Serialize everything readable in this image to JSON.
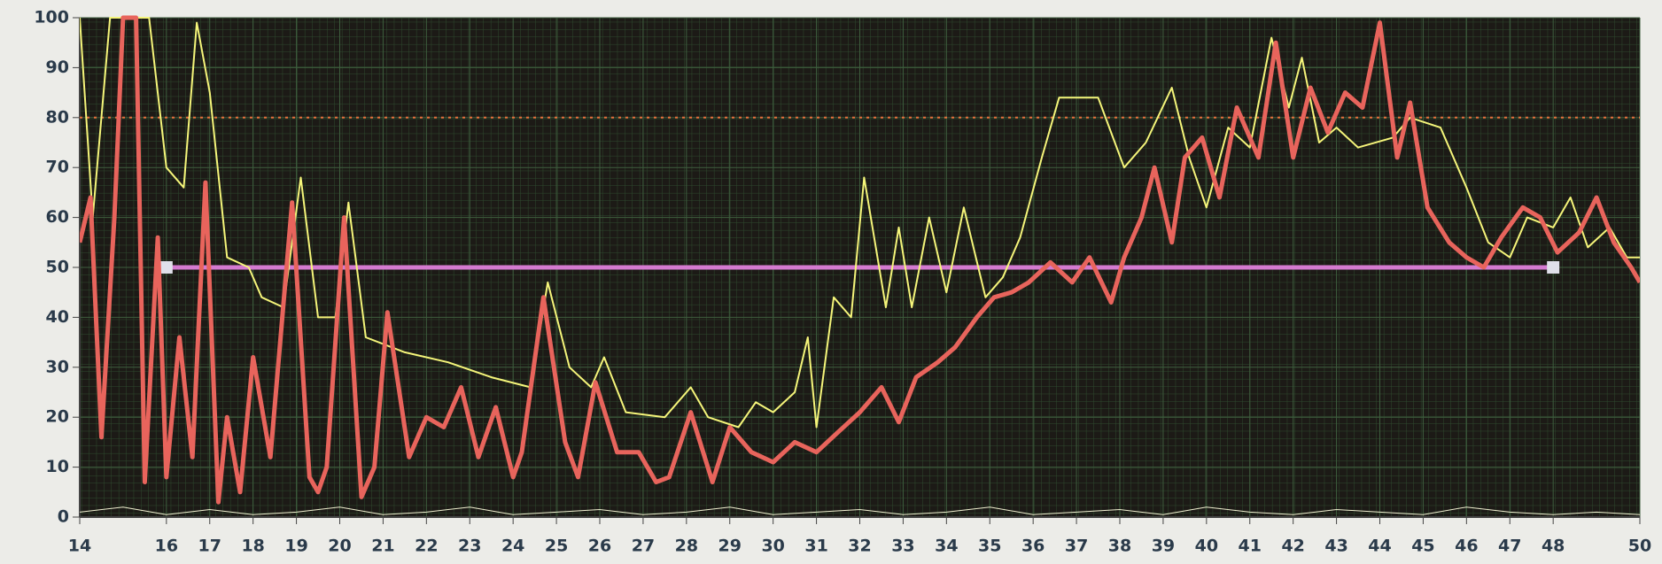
{
  "chart_data": {
    "type": "line",
    "xlim": [
      14,
      50
    ],
    "xticks": [
      14,
      16,
      17,
      18,
      19,
      20,
      21,
      22,
      23,
      24,
      25,
      26,
      27,
      28,
      29,
      30,
      31,
      32,
      33,
      34,
      35,
      36,
      37,
      38,
      39,
      40,
      41,
      42,
      43,
      44,
      45,
      46,
      47,
      48,
      50
    ],
    "ylim": [
      0,
      100
    ],
    "yticks": [
      0,
      10,
      20,
      30,
      40,
      50,
      60,
      70,
      80,
      90,
      100
    ],
    "grid": true,
    "reference_lines": [
      {
        "y": 80,
        "color": "#e8703c",
        "style": "dotted"
      },
      {
        "y": 50,
        "color": "#d47ad0",
        "style": "solid",
        "x": [
          16,
          48
        ]
      }
    ],
    "series": [
      {
        "color": "#f5f57a",
        "width": 2,
        "x": [
          14.0,
          14.3,
          14.7,
          15.6,
          16.0,
          16.4,
          16.7,
          17.0,
          17.4,
          17.9,
          18.2,
          18.7,
          19.1,
          19.5,
          19.9,
          20.2,
          20.6,
          21.5,
          22.5,
          23.5,
          24.4,
          24.8,
          25.3,
          25.8,
          26.1,
          26.6,
          27.5,
          28.1,
          28.5,
          29.2,
          29.6,
          30.0,
          30.5,
          30.8,
          31.0,
          31.4,
          31.8,
          32.1,
          32.6,
          32.9,
          33.2,
          33.6,
          34.0,
          34.4,
          34.9,
          35.3,
          35.7,
          36.2,
          36.6,
          37.5,
          38.1,
          38.6,
          39.2,
          39.6,
          40.0,
          40.5,
          41.0,
          41.5,
          41.9,
          42.2,
          42.6,
          43.0,
          43.5,
          44.3,
          44.7,
          45.4,
          46.0,
          46.5,
          47.0,
          47.4,
          48.0,
          48.4,
          48.8,
          49.3,
          49.7,
          50.0
        ],
        "values": [
          100,
          60,
          100,
          100,
          70,
          66,
          99,
          85,
          52,
          50,
          44,
          42,
          68,
          40,
          40,
          63,
          36,
          33,
          31,
          28,
          26,
          47,
          30,
          26,
          32,
          21,
          20,
          26,
          20,
          18,
          23,
          21,
          25,
          36,
          18,
          44,
          40,
          68,
          42,
          58,
          42,
          60,
          45,
          62,
          44,
          48,
          56,
          72,
          84,
          84,
          70,
          75,
          86,
          72,
          62,
          78,
          74,
          96,
          82,
          92,
          75,
          78,
          74,
          76,
          80,
          78,
          66,
          55,
          52,
          60,
          58,
          64,
          54,
          58,
          52,
          52
        ]
      },
      {
        "color": "#e8645c",
        "width": 5,
        "x": [
          14.0,
          14.25,
          14.5,
          14.8,
          15.0,
          15.3,
          15.5,
          15.8,
          16.0,
          16.3,
          16.6,
          16.9,
          17.2,
          17.4,
          17.7,
          18.0,
          18.4,
          18.9,
          19.3,
          19.5,
          19.7,
          20.1,
          20.5,
          20.8,
          21.1,
          21.6,
          22.0,
          22.4,
          22.8,
          23.2,
          23.6,
          24.0,
          24.2,
          24.7,
          25.2,
          25.5,
          25.9,
          26.4,
          26.9,
          27.3,
          27.6,
          28.1,
          28.6,
          29.0,
          29.5,
          30.0,
          30.5,
          31.0,
          31.5,
          32.0,
          32.5,
          32.9,
          33.3,
          33.8,
          34.2,
          34.7,
          35.1,
          35.5,
          35.9,
          36.4,
          36.9,
          37.3,
          37.8,
          38.1,
          38.5,
          38.8,
          39.2,
          39.5,
          39.9,
          40.3,
          40.7,
          41.2,
          41.6,
          42.0,
          42.4,
          42.8,
          43.2,
          43.6,
          44.0,
          44.4,
          44.7,
          45.1,
          45.6,
          46.0,
          46.4,
          46.8,
          47.3,
          47.7,
          48.1,
          48.6,
          49.0,
          49.4,
          49.8,
          50.0
        ],
        "values": [
          55,
          64,
          16,
          60,
          100,
          100,
          7,
          56,
          8,
          36,
          12,
          67,
          3,
          20,
          5,
          32,
          12,
          63,
          8,
          5,
          10,
          60,
          4,
          10,
          41,
          12,
          20,
          18,
          26,
          12,
          22,
          8,
          13,
          44,
          15,
          8,
          27,
          13,
          13,
          7,
          8,
          21,
          7,
          18,
          13,
          11,
          15,
          13,
          17,
          21,
          26,
          19,
          28,
          31,
          34,
          40,
          44,
          45,
          47,
          51,
          47,
          52,
          43,
          52,
          60,
          70,
          55,
          72,
          76,
          64,
          82,
          72,
          95,
          72,
          86,
          77,
          85,
          82,
          99,
          72,
          83,
          62,
          55,
          52,
          50,
          56,
          62,
          60,
          53,
          57,
          64,
          55,
          50,
          47
        ]
      },
      {
        "color": "#f0f0d0",
        "width": 1,
        "x": [
          14,
          15,
          16,
          17,
          18,
          19,
          20,
          21,
          22,
          23,
          24,
          25,
          26,
          27,
          28,
          29,
          30,
          31,
          32,
          33,
          34,
          35,
          36,
          37,
          38,
          39,
          40,
          41,
          42,
          43,
          44,
          45,
          46,
          47,
          48,
          49,
          50
        ],
        "values": [
          1,
          2,
          0.5,
          1.5,
          0.5,
          1,
          2,
          0.5,
          1,
          2,
          0.5,
          1,
          1.5,
          0.5,
          1,
          2,
          0.5,
          1,
          1.5,
          0.5,
          1,
          2,
          0.5,
          1,
          1.5,
          0.5,
          2,
          1,
          0.5,
          1.5,
          1,
          0.5,
          2,
          1,
          0.5,
          1,
          0.5
        ]
      }
    ]
  }
}
